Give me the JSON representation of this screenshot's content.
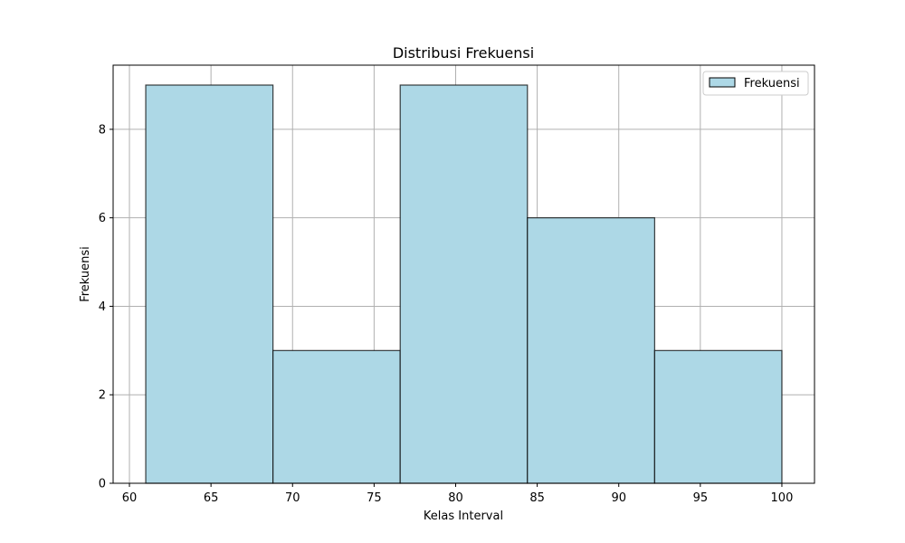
{
  "chart_data": {
    "type": "bar",
    "title": "Distribusi Frekuensi",
    "xlabel": "Kelas Interval",
    "ylabel": "Frekuensi",
    "bins": [
      {
        "start": 61.0,
        "end": 68.8,
        "value": 9
      },
      {
        "start": 68.8,
        "end": 76.6,
        "value": 3
      },
      {
        "start": 76.6,
        "end": 84.4,
        "value": 9
      },
      {
        "start": 84.4,
        "end": 92.2,
        "value": 6
      },
      {
        "start": 92.2,
        "end": 100.0,
        "value": 3
      }
    ],
    "xlim": [
      59,
      102
    ],
    "ylim": [
      0,
      9.45
    ],
    "xticks": [
      60,
      65,
      70,
      75,
      80,
      85,
      90,
      95,
      100
    ],
    "yticks": [
      0,
      2,
      4,
      6,
      8
    ],
    "grid": true,
    "legend": {
      "placement": "upper-right",
      "entries": [
        "Frekuensi"
      ]
    },
    "colors": {
      "bar_fill": "#add8e6",
      "bar_edge": "#000000",
      "grid": "#b0b0b0",
      "axes": "#000000"
    }
  }
}
